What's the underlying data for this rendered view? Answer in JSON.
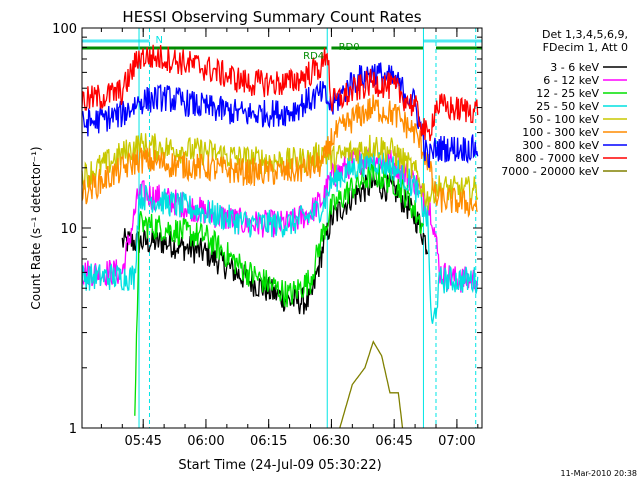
{
  "chart_data": {
    "type": "line",
    "title": "HESSI Observing Summary Count Rates",
    "xlabel": "Start Time (24-Jul-09 05:30:22)",
    "ylabel": "Count Rate (s⁻¹ detector⁻¹)",
    "yscale": "log",
    "ylim": [
      1,
      100
    ],
    "xlim": [
      "05:30:22",
      "07:06:00"
    ],
    "x_ticks": [
      "05:45",
      "06:00",
      "06:15",
      "06:30",
      "06:45",
      "07:00"
    ],
    "y_ticks": [
      "1",
      "10",
      "100"
    ],
    "timestamp": "11-Mar-2010 20:38",
    "legend": {
      "position": "right",
      "header": [
        "Det 1,3,4,5,6,9,",
        "FDecim 1, Att 0"
      ]
    },
    "annotations": [
      {
        "label": "N",
        "x": "05:46:30",
        "color": "#00e5e5"
      },
      {
        "label": "RD4",
        "x": "06:28:30",
        "color": "#008a00"
      },
      {
        "label": "RD0",
        "x": "06:31:00",
        "color": "#008a00"
      }
    ],
    "flag_bars": [
      {
        "name": "night",
        "color": "#4de8f0",
        "segments": [
          [
            "05:30:22",
            "05:46:30"
          ],
          [
            "06:52:00",
            "07:06:00"
          ]
        ]
      },
      {
        "name": "decimation",
        "color": "#008a00",
        "segments": [
          [
            "05:30:22",
            "06:29:00"
          ],
          [
            "06:30:00",
            "06:52:00"
          ],
          [
            "06:55:00",
            "07:06:00"
          ]
        ]
      }
    ],
    "vlines": [
      {
        "x": "05:44:00",
        "color": "#00e5e5",
        "style": "solid"
      },
      {
        "x": "05:46:30",
        "color": "#00e5e5",
        "style": "dashed"
      },
      {
        "x": "06:29:00",
        "color": "#00e5e5",
        "style": "solid"
      },
      {
        "x": "06:52:00",
        "color": "#00e5e5",
        "style": "solid"
      },
      {
        "x": "06:55:00",
        "color": "#00e5e5",
        "style": "dashed"
      },
      {
        "x": "07:04:30",
        "color": "#00e5e5",
        "style": "dashed"
      }
    ],
    "series": [
      {
        "name": "3 - 6 keV",
        "color": "#000000",
        "times": [
          "05:40",
          "05:44",
          "05:50",
          "06:00",
          "06:10",
          "06:20",
          "06:25",
          "06:28",
          "06:30",
          "06:35",
          "06:40",
          "06:45",
          "06:48",
          "06:51",
          "06:53"
        ],
        "values": [
          8.5,
          8.5,
          8.5,
          7.5,
          5.5,
          4.3,
          4.3,
          8,
          11,
          14.5,
          16.5,
          15.5,
          13,
          10.5,
          8
        ]
      },
      {
        "name": "6 - 12 keV",
        "color": "#ff00ff",
        "times": [
          "05:30:22",
          "05:40",
          "05:44",
          "05:50",
          "06:00",
          "06:10",
          "06:20",
          "06:25",
          "06:28",
          "06:30",
          "06:35",
          "06:40",
          "06:45",
          "06:50",
          "06:54",
          "06:56",
          "07:00",
          "07:05"
        ],
        "values": [
          6,
          6,
          15,
          14,
          12,
          10.5,
          10.5,
          12,
          14,
          18,
          21,
          23,
          21,
          17,
          12,
          6,
          5.5,
          5.5
        ]
      },
      {
        "name": "12 - 25 keV",
        "color": "#00e000",
        "times": [
          "05:43",
          "05:44",
          "05:50",
          "06:00",
          "06:10",
          "06:20",
          "06:25",
          "06:28",
          "06:30",
          "06:35",
          "06:40",
          "06:45",
          "06:48",
          "06:52"
        ],
        "values": [
          1,
          10.5,
          10,
          9,
          6,
          4.6,
          5.5,
          9.5,
          12.5,
          16,
          18.5,
          17,
          14.5,
          10
        ]
      },
      {
        "name": "25 - 50 keV",
        "color": "#00e0e0",
        "times": [
          "05:30:22",
          "05:43",
          "05:44",
          "05:50",
          "06:00",
          "06:10",
          "06:20",
          "06:25",
          "06:28",
          "06:30",
          "06:35",
          "06:40",
          "06:45",
          "06:50",
          "06:53",
          "06:54",
          "06:56",
          "07:00",
          "07:05"
        ],
        "values": [
          5.7,
          5.7,
          14.5,
          13.5,
          12,
          10.5,
          10.5,
          11.5,
          13,
          17,
          20,
          22,
          20,
          16,
          11,
          3,
          5.5,
          5.5,
          5.5
        ]
      },
      {
        "name": "50 - 100 keV",
        "color": "#c8c800",
        "times": [
          "05:30:22",
          "05:44",
          "05:50",
          "06:00",
          "06:10",
          "06:20",
          "06:25",
          "06:28",
          "06:30",
          "06:35",
          "06:40",
          "06:45",
          "06:50",
          "06:53",
          "06:55",
          "07:00",
          "07:05"
        ],
        "values": [
          18,
          26,
          25,
          24,
          22,
          21.5,
          22,
          24,
          22,
          24,
          26,
          24,
          19,
          14,
          16,
          15.5,
          15.5
        ]
      },
      {
        "name": "100 - 300 keV",
        "color": "#ff8c00",
        "times": [
          "05:30:22",
          "05:44",
          "05:50",
          "06:00",
          "06:10",
          "06:20",
          "06:25",
          "06:28",
          "06:30",
          "06:35",
          "06:40",
          "06:45",
          "06:50",
          "06:53",
          "06:55",
          "07:00",
          "07:05"
        ],
        "values": [
          15,
          22,
          21,
          20,
          19,
          19,
          20,
          21,
          28,
          35,
          40,
          37,
          30,
          22,
          14,
          13.5,
          13
        ]
      },
      {
        "name": "300 - 800 keV",
        "color": "#0000ff",
        "times": [
          "05:30:22",
          "05:40",
          "05:44",
          "05:50",
          "06:00",
          "06:10",
          "06:20",
          "06:25",
          "06:28",
          "06:30",
          "06:35",
          "06:40",
          "06:45",
          "06:50",
          "06:53",
          "06:55",
          "07:00",
          "07:05"
        ],
        "values": [
          33,
          37,
          43,
          45,
          40,
          37,
          38,
          44,
          47,
          40,
          54,
          60,
          55,
          42,
          22,
          25,
          25,
          25
        ]
      },
      {
        "name": "800 - 7000 keV",
        "color": "#ff0000",
        "times": [
          "05:30:22",
          "05:40",
          "05:44",
          "05:50",
          "06:00",
          "06:10",
          "06:20",
          "06:25",
          "06:28",
          "06:29",
          "06:30",
          "06:35",
          "06:40",
          "06:45",
          "06:50",
          "06:53",
          "06:55",
          "07:00",
          "07:05"
        ],
        "values": [
          43,
          48,
          72,
          71,
          63,
          53,
          53,
          60,
          65,
          80,
          42,
          48,
          54,
          50,
          40,
          28,
          41,
          39,
          39
        ]
      },
      {
        "name": "7000 - 20000 keV",
        "color": "#808000",
        "times": [
          "06:32",
          "06:35",
          "06:38",
          "06:40",
          "06:42",
          "06:44",
          "06:46",
          "06:47"
        ],
        "values": [
          1,
          1.65,
          2,
          2.7,
          2.3,
          1.5,
          1.5,
          1
        ]
      }
    ]
  }
}
